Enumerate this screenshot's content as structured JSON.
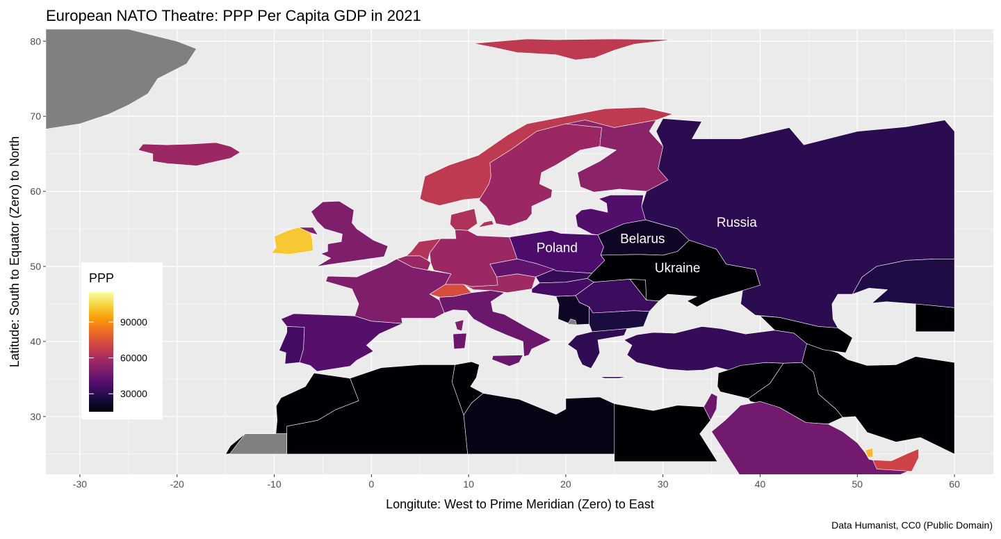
{
  "chart_data": {
    "type": "choropleth-map",
    "title": "European NATO Theatre: PPP Per Capita GDP in 2021",
    "xlabel": "Longitute: West to Prime Meridian (Zero) to East",
    "ylabel": "Latitude: South to Equator (Zero) to North",
    "caption": "Data Humanist, CC0 (Public Domain)",
    "xlim": [
      -33.5,
      64
    ],
    "ylim": [
      22.3,
      81.6
    ],
    "x_ticks": [
      -30,
      -20,
      -10,
      0,
      10,
      20,
      30,
      40,
      50,
      60
    ],
    "y_ticks": [
      30,
      40,
      50,
      60,
      70,
      80
    ],
    "grid": true,
    "legend": {
      "title": "PPP",
      "position": "inside-left",
      "ticks": [
        30000,
        60000,
        90000
      ],
      "range": [
        15000,
        115000
      ],
      "colors": [
        "#000004",
        "#1b0c41",
        "#4a0c6b",
        "#781c6d",
        "#a52c60",
        "#cf4446",
        "#ed6925",
        "#fb9b06",
        "#f7d13d",
        "#fcffa4"
      ]
    },
    "no_data_color": "#808080",
    "labels": [
      {
        "text": "Russia",
        "x": 37.6,
        "y": 55.3
      },
      {
        "text": "Poland",
        "x": 19.1,
        "y": 51.9
      },
      {
        "text": "Belarus",
        "x": 27.9,
        "y": 53.1
      },
      {
        "text": "Ukraine",
        "x": 31.5,
        "y": 49.2
      }
    ],
    "regions": [
      {
        "name": "Russia",
        "value": 30000
      },
      {
        "name": "Poland",
        "value": 37500
      },
      {
        "name": "Belarus",
        "value": 21000
      },
      {
        "name": "Ukraine",
        "value": 15000
      },
      {
        "name": "Norway",
        "value": 66000
      },
      {
        "name": "Sweden",
        "value": 57000
      },
      {
        "name": "Finland",
        "value": 53000
      },
      {
        "name": "Iceland",
        "value": 57000
      },
      {
        "name": "Ireland",
        "value": 102000
      },
      {
        "name": "United Kingdom",
        "value": 50000
      },
      {
        "name": "France",
        "value": 50000
      },
      {
        "name": "Spain",
        "value": 40000
      },
      {
        "name": "Portugal",
        "value": 36000
      },
      {
        "name": "Germany",
        "value": 57000
      },
      {
        "name": "Switzerland",
        "value": 73000
      },
      {
        "name": "Austria",
        "value": 58000
      },
      {
        "name": "Italy",
        "value": 45000
      },
      {
        "name": "Denmark",
        "value": 62000
      },
      {
        "name": "Netherlands",
        "value": 63000
      },
      {
        "name": "Belgium",
        "value": 57000
      },
      {
        "name": "Luxembourg",
        "value": 118000
      },
      {
        "name": "Czechia",
        "value": 43000
      },
      {
        "name": "Slovakia",
        "value": 32000
      },
      {
        "name": "Hungary",
        "value": 36000
      },
      {
        "name": "Romania",
        "value": 34000
      },
      {
        "name": "Bulgaria",
        "value": 26000
      },
      {
        "name": "Serbia",
        "value": 21000
      },
      {
        "name": "Greece",
        "value": 31000
      },
      {
        "name": "Turkey",
        "value": 32000
      },
      {
        "name": "Baltic states",
        "value": 39000
      },
      {
        "name": "Moldova",
        "value": 14000
      },
      {
        "name": "Kosovo",
        "value": null
      },
      {
        "name": "Svalbard",
        "value": 66000
      },
      {
        "name": "Greenland",
        "value": null
      },
      {
        "name": "Morocco",
        "value": 8000
      },
      {
        "name": "Western Sahara",
        "value": null
      },
      {
        "name": "Algeria",
        "value": 12000
      },
      {
        "name": "Tunisia",
        "value": 11000
      },
      {
        "name": "Libya",
        "value": 18000
      },
      {
        "name": "Egypt",
        "value": 14000
      },
      {
        "name": "Israel",
        "value": 45000
      },
      {
        "name": "Syria",
        "value": 3000
      },
      {
        "name": "Iraq",
        "value": 10000
      },
      {
        "name": "Iran",
        "value": 15000
      },
      {
        "name": "Saudi Arabia",
        "value": 47000
      },
      {
        "name": "Qatar",
        "value": 99000
      },
      {
        "name": "UAE",
        "value": 70000
      },
      {
        "name": "Kazakhstan",
        "value": 27000
      },
      {
        "name": "Uzbekistan",
        "value": 8000
      },
      {
        "name": "Caucasus",
        "value": 15000
      }
    ]
  }
}
